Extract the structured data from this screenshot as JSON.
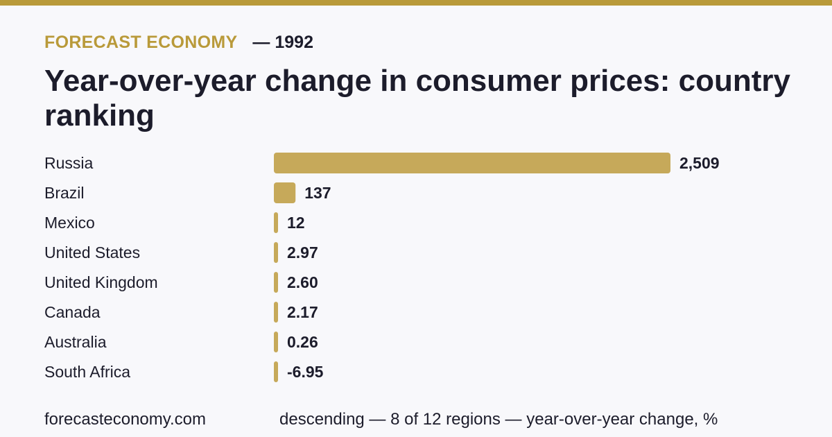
{
  "header": {
    "brand": "FORECAST ECONOMY",
    "year": "— 1992",
    "title": "Year-over-year change in consumer prices: country ranking"
  },
  "footer": {
    "site": "forecasteconomy.com",
    "note": "descending — 8 of 12 regions — year-over-year change, %"
  },
  "colors": {
    "accent": "#b99a3a",
    "bar": "#c6a95a",
    "text": "#1c1c2b",
    "background": "#f8f8fb"
  },
  "chart_data": {
    "type": "bar",
    "orientation": "horizontal",
    "categories": [
      "Russia",
      "Brazil",
      "Mexico",
      "United States",
      "United Kingdom",
      "Canada",
      "Australia",
      "South Africa"
    ],
    "values": [
      2509,
      137,
      12,
      2.97,
      2.6,
      2.17,
      0.26,
      -6.95
    ],
    "value_labels": [
      "2,509",
      "137",
      "12",
      "2.97",
      "2.60",
      "2.17",
      "0.26",
      "-6.95"
    ],
    "title": "",
    "xlabel": "",
    "ylabel": "",
    "xlim": [
      0,
      2509
    ],
    "grid": false,
    "legend": "none"
  }
}
